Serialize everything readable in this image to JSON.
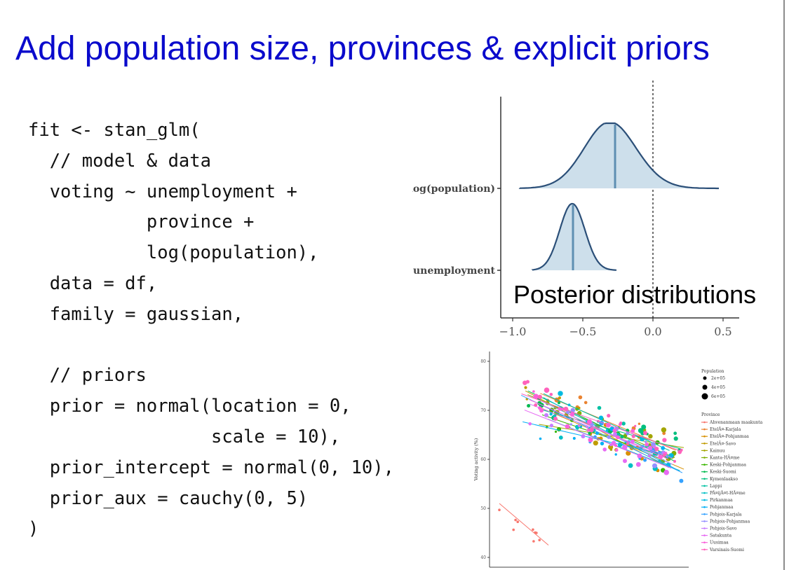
{
  "slide": {
    "title": "Add population size, provinces & explicit priors"
  },
  "code": {
    "lines": [
      "fit <- stan_glm(",
      "  // model & data",
      "  voting ~ unemployment +",
      "           province +",
      "           log(population),",
      "  data = df,",
      "  family = gaussian,",
      "",
      "  // priors",
      "  prior = normal(location = 0,",
      "                 scale = 10),",
      "  prior_intercept = normal(0, 10),",
      "  prior_aux = cauchy(0, 5)",
      ")"
    ]
  },
  "posterior_chart": {
    "caption": "Posterior distributions",
    "chart_data": {
      "type": "area",
      "title": "Posterior distributions",
      "x_ticks": [
        "-1.0",
        "-0.5",
        "0.0",
        "0.5"
      ],
      "xlim": [
        -1.0,
        0.5
      ],
      "reference_line_x": 0.0,
      "series": [
        {
          "name": "log(population)",
          "mean": -0.27,
          "sd": 0.19,
          "range": [
            -0.95,
            0.47
          ]
        },
        {
          "name": "unemployment",
          "mean": -0.57,
          "sd": 0.09,
          "range": [
            -0.86,
            -0.26
          ]
        }
      ],
      "colors": {
        "fill": "#cddfeb",
        "line": "#2b4f78",
        "center": "#5e8fb2"
      }
    }
  },
  "scatter_chart": {
    "chart_data": {
      "type": "scatter",
      "ylabel": "Voting activity (%)",
      "y_ticks": [
        "80",
        "70",
        "60",
        "50",
        "40"
      ],
      "ylim": [
        38,
        82
      ],
      "population_legend": {
        "title": "Population",
        "entries": [
          "2e+05",
          "4e+05",
          "6e+05"
        ]
      },
      "province_legend": {
        "title": "Province",
        "entries": [
          {
            "name": "Ahvenanmaan maakunta",
            "color": "#f8766d"
          },
          {
            "name": "EtelÃ¤-Karjala",
            "color": "#ea8331"
          },
          {
            "name": "EtelÃ¤-Pohjanmaa",
            "color": "#d89000"
          },
          {
            "name": "EtelÃ¤-Savo",
            "color": "#c09b00"
          },
          {
            "name": "Kainuu",
            "color": "#a3a500"
          },
          {
            "name": "Kanta-HÃ¤me",
            "color": "#7cae00"
          },
          {
            "name": "Keski-Pohjanmaa",
            "color": "#39b600"
          },
          {
            "name": "Keski-Suomi",
            "color": "#00bb4e"
          },
          {
            "name": "Kymenlaakso",
            "color": "#00bf7d"
          },
          {
            "name": "Lappi",
            "color": "#00c1a3"
          },
          {
            "name": "PÃ¤ijÃ¤t-HÃ¤me",
            "color": "#00bfc4"
          },
          {
            "name": "Pirkanmaa",
            "color": "#00bae0"
          },
          {
            "name": "Pohjanmaa",
            "color": "#00b0f6"
          },
          {
            "name": "Pohjois-Karjala",
            "color": "#35a2ff"
          },
          {
            "name": "Pohjois-Pohjanmaa",
            "color": "#9590ff"
          },
          {
            "name": "Pohjois-Savo",
            "color": "#c77cff"
          },
          {
            "name": "Satakunta",
            "color": "#e76bf3"
          },
          {
            "name": "Uusimaa",
            "color": "#fa62db"
          },
          {
            "name": "Varsinais-Suomi",
            "color": "#ff62bc"
          }
        ]
      }
    }
  }
}
